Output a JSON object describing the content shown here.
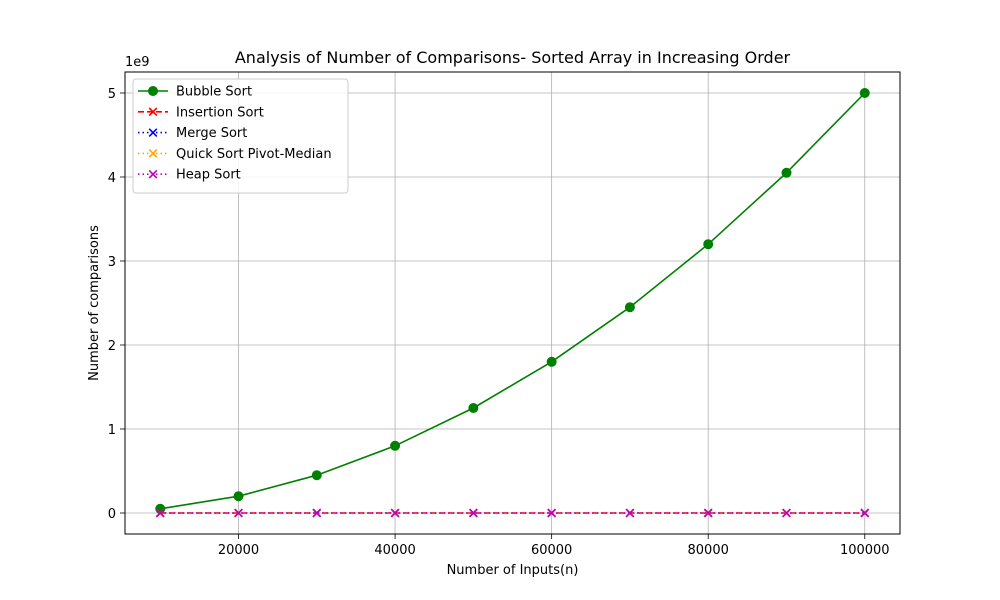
{
  "chart_data": {
    "type": "line",
    "title": "Analysis of Number of Comparisons- Sorted Array in Increasing Order",
    "xlabel": "Number of Inputs(n)",
    "ylabel": "Number of comparisons",
    "y_scale_label": "1e9",
    "x": [
      10000,
      20000,
      30000,
      40000,
      50000,
      60000,
      70000,
      80000,
      90000,
      100000
    ],
    "xlim": [
      5500,
      104500
    ],
    "ylim": [
      -0.25,
      5.25
    ],
    "y_unit_multiplier": 1000000000,
    "x_ticks": [
      20000,
      40000,
      60000,
      80000,
      100000
    ],
    "x_tick_labels": [
      "20000",
      "40000",
      "60000",
      "80000",
      "100000"
    ],
    "y_ticks": [
      0,
      1,
      2,
      3,
      4,
      5
    ],
    "y_tick_labels": [
      "0",
      "1",
      "2",
      "3",
      "4",
      "5"
    ],
    "grid": true,
    "legend_position": "top-left",
    "series": [
      {
        "name": "Bubble Sort",
        "color": "#008000",
        "linestyle": "solid",
        "marker": "circle",
        "values": [
          0.05,
          0.2,
          0.45,
          0.8,
          1.25,
          1.8,
          2.45,
          3.2,
          4.05,
          5.0
        ]
      },
      {
        "name": "Insertion Sort",
        "color": "#ff0000",
        "linestyle": "dashed",
        "marker": "x",
        "values": [
          0,
          0,
          0,
          0,
          0,
          0,
          0,
          0,
          0,
          0
        ]
      },
      {
        "name": "Merge Sort",
        "color": "#0000ff",
        "linestyle": "dotted",
        "marker": "x",
        "values": [
          0,
          0,
          0,
          0,
          0,
          0,
          0,
          0,
          0,
          0
        ]
      },
      {
        "name": "Quick Sort Pivot-Median",
        "color": "#ffa500",
        "linestyle": "dotted",
        "marker": "x",
        "values": [
          0,
          0,
          0,
          0,
          0,
          0,
          0,
          0,
          0,
          0
        ]
      },
      {
        "name": "Heap Sort",
        "color": "#bf00bf",
        "linestyle": "dotted",
        "marker": "x",
        "values": [
          0,
          0,
          0,
          0,
          0,
          0,
          0,
          0,
          0,
          0
        ]
      }
    ]
  }
}
